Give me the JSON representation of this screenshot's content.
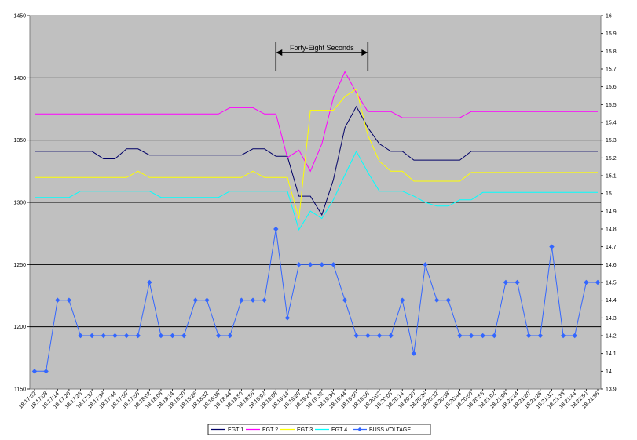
{
  "chart_data": {
    "type": "line",
    "x": [
      "18:17:02",
      "18:17:08",
      "18:17:14",
      "18:17:20",
      "18:17:26",
      "18:17:32",
      "18:17:38",
      "18:17:44",
      "18:17:50",
      "18:17:56",
      "18:18:02",
      "18:18:08",
      "18:18:14",
      "18:18:20",
      "18:18:26",
      "18:18:32",
      "18:18:38",
      "18:18:44",
      "18:18:50",
      "18:18:56",
      "18:19:02",
      "18:19:08",
      "18:19:14",
      "18:19:20",
      "18:19:26",
      "18:19:32",
      "18:19:38",
      "18:19:44",
      "18:19:50",
      "18:19:56",
      "18:20:02",
      "18:20:08",
      "18:20:14",
      "18:20:20",
      "18:20:26",
      "18:20:32",
      "18:20:38",
      "18:20:44",
      "18:20:50",
      "18:20:56",
      "18:21:02",
      "18:21:08",
      "18:21:14",
      "18:21:20",
      "18:21:26",
      "18:21:32",
      "18:21:38",
      "18:21:44",
      "18:21:50",
      "18:21:56"
    ],
    "x_tick_labels": [
      "18:17:02",
      "18:17:08",
      "18:17:14",
      "18:17:20",
      "18:17:26",
      "18:17:32",
      "18:17:38",
      "18:17:44",
      "18:17:50",
      "18:17:56",
      "18:18:02",
      "18:18:08",
      "18:18:14",
      "18:18:20",
      "18:18:26",
      "18:18:32",
      "18:18:38",
      "18:18:44",
      "18:18:50",
      "18:18:56",
      "18:19:02",
      "18:19:08",
      "18:19:14",
      "18:19:20",
      "18:19:26",
      "18:19:32",
      "18:19:38",
      "18:19:44",
      "18:19:50",
      "18:19:56",
      "18:20:02",
      "18:20:08",
      "18:20:14",
      "18:20:20",
      "18:20:26",
      "18:20:32",
      "18:20:38",
      "18:20:44",
      "18:20:50",
      "18:20:56",
      "18:21:02",
      "18:21:08",
      "18:21:14",
      "18:21:20",
      "18:21:26",
      "18:21:32",
      "18:21:38",
      "18:21:44",
      "18:21:50",
      "18:21:56"
    ],
    "series": [
      {
        "name": "EGT 1",
        "axis": "left",
        "color": "#000066",
        "markers": false,
        "values": [
          1341,
          1341,
          1341,
          1341,
          1341,
          1341,
          1335,
          1335,
          1343,
          1343,
          1338,
          1338,
          1338,
          1338,
          1338,
          1338,
          1338,
          1338,
          1338,
          1343,
          1343,
          1337,
          1337,
          1305,
          1305,
          1290,
          1318,
          1360,
          1377,
          1360,
          1347,
          1341,
          1341,
          1334,
          1334,
          1334,
          1334,
          1334,
          1341,
          1341,
          1341,
          1341,
          1341,
          1341,
          1341,
          1341,
          1341,
          1341,
          1341,
          1341
        ]
      },
      {
        "name": "EGT 2",
        "axis": "left",
        "color": "#ff00ff",
        "markers": false,
        "values": [
          1371,
          1371,
          1371,
          1371,
          1371,
          1371,
          1371,
          1371,
          1371,
          1371,
          1371,
          1371,
          1371,
          1371,
          1371,
          1371,
          1371,
          1376,
          1376,
          1376,
          1371,
          1371,
          1336,
          1342,
          1325,
          1347,
          1384,
          1405,
          1388,
          1373,
          1373,
          1373,
          1368,
          1368,
          1368,
          1368,
          1368,
          1368,
          1373,
          1373,
          1373,
          1373,
          1373,
          1373,
          1373,
          1373,
          1373,
          1373,
          1373,
          1373
        ]
      },
      {
        "name": "EGT 3",
        "axis": "left",
        "color": "#ffff00",
        "markers": false,
        "values": [
          1320,
          1320,
          1320,
          1320,
          1320,
          1320,
          1320,
          1320,
          1320,
          1325,
          1320,
          1320,
          1320,
          1320,
          1320,
          1320,
          1320,
          1320,
          1320,
          1325,
          1320,
          1320,
          1320,
          1287,
          1374,
          1374,
          1374,
          1385,
          1391,
          1354,
          1333,
          1325,
          1325,
          1317,
          1317,
          1317,
          1317,
          1317,
          1324,
          1324,
          1324,
          1324,
          1324,
          1324,
          1324,
          1324,
          1324,
          1324,
          1324,
          1324
        ]
      },
      {
        "name": "EGT 4",
        "axis": "left",
        "color": "#00ffff",
        "markers": false,
        "values": [
          1304,
          1304,
          1304,
          1304,
          1309,
          1309,
          1309,
          1309,
          1309,
          1309,
          1309,
          1304,
          1304,
          1304,
          1304,
          1304,
          1304,
          1309,
          1309,
          1309,
          1309,
          1309,
          1309,
          1278,
          1293,
          1287,
          1302,
          1322,
          1341,
          1324,
          1309,
          1309,
          1309,
          1305,
          1300,
          1297,
          1297,
          1302,
          1302,
          1308,
          1308,
          1308,
          1308,
          1308,
          1308,
          1308,
          1308,
          1308,
          1308,
          1308
        ]
      },
      {
        "name": "BUSS VOLTAGE",
        "axis": "right",
        "color": "#3366ff",
        "markers": true,
        "values": [
          14.0,
          14.0,
          14.4,
          14.4,
          14.2,
          14.2,
          14.2,
          14.2,
          14.2,
          14.2,
          14.5,
          14.2,
          14.2,
          14.2,
          14.4,
          14.4,
          14.2,
          14.2,
          14.4,
          14.4,
          14.4,
          14.8,
          14.3,
          14.6,
          14.6,
          14.6,
          14.6,
          14.4,
          14.2,
          14.2,
          14.2,
          14.2,
          14.4,
          14.1,
          14.6,
          14.4,
          14.4,
          14.2,
          14.2,
          14.2,
          14.2,
          14.5,
          14.5,
          14.2,
          14.2,
          14.7,
          14.2,
          14.2,
          14.5,
          14.5
        ]
      }
    ],
    "y_left": {
      "min": 1150,
      "max": 1450,
      "ticks": [
        1150,
        1200,
        1250,
        1300,
        1350,
        1400,
        1450
      ]
    },
    "y_right": {
      "min": 13.9,
      "max": 16.0,
      "ticks": [
        "13.9",
        "14",
        "14.1",
        "14.2",
        "14.3",
        "14.4",
        "14.5",
        "14.6",
        "14.7",
        "14.8",
        "14.9",
        "15",
        "15.1",
        "15.2",
        "15.3",
        "15.4",
        "15.5",
        "15.6",
        "15.7",
        "15.8",
        "15.9",
        "16"
      ]
    },
    "grid": "horizontal-left-major",
    "background": "#c0c0c0",
    "legend": "bottom-center",
    "annotation": {
      "text": "Forty-Eight Seconds",
      "from_index": 21,
      "to_index": 29
    }
  }
}
